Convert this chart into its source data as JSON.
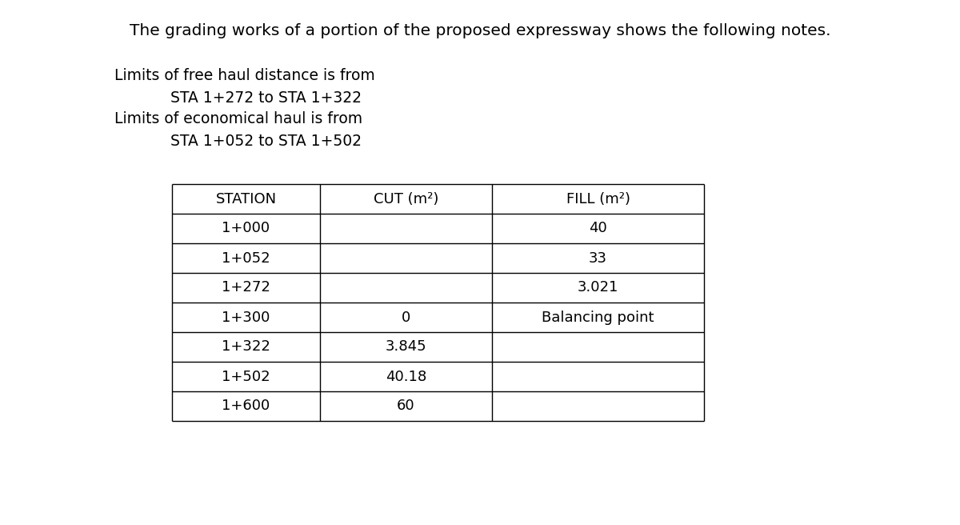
{
  "title": "The grading works of a portion of the proposed expressway shows the following notes.",
  "line1": "Limits of free haul distance is from",
  "line2_indent": "STA 1+272 to STA 1+322",
  "line3": "Limits of economical haul is from",
  "line4_indent": "STA 1+052 to STA 1+502",
  "col_headers": [
    "STATION",
    "CUT (m²)",
    "FILL (m²)"
  ],
  "table_data": [
    [
      "1+000",
      "",
      "40"
    ],
    [
      "1+052",
      "",
      "33"
    ],
    [
      "1+272",
      "",
      "3.021"
    ],
    [
      "1+300",
      "0",
      "Balancing point"
    ],
    [
      "1+322",
      "3.845",
      ""
    ],
    [
      "1+502",
      "40.18",
      ""
    ],
    [
      "1+600",
      "60",
      ""
    ]
  ],
  "bg_color": "#ffffff",
  "text_color": "#000000",
  "font_size_title": 14.5,
  "font_size_body": 13.5,
  "font_size_table": 13
}
